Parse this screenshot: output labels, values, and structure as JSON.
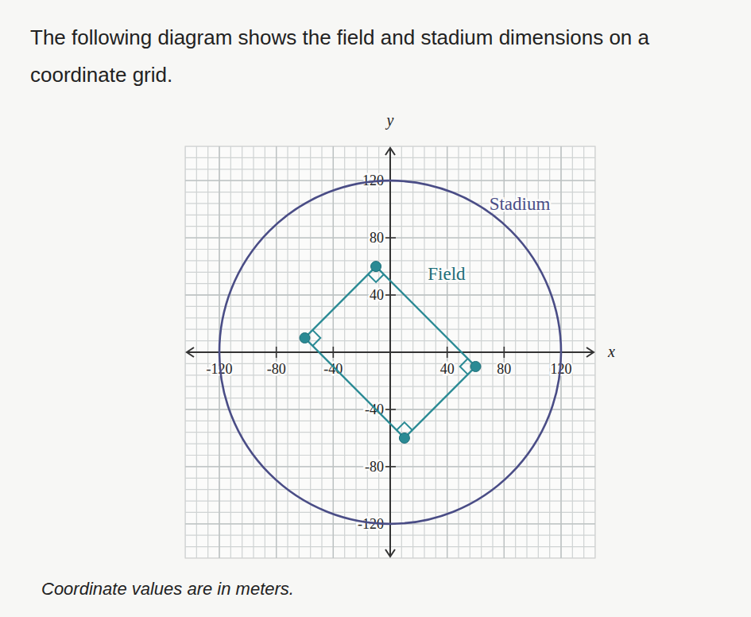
{
  "chart_data": {
    "type": "scatter",
    "title": "The following diagram shows the field and stadium dimensions on a coordinate grid.",
    "x": [
      -10,
      -60,
      10,
      60
    ],
    "values": [
      60,
      10,
      -60,
      -10
    ],
    "xlim": [
      -144,
      144
    ],
    "ylim": [
      -144,
      144
    ],
    "xticks": [
      -120,
      -80,
      -40,
      40,
      80,
      120
    ],
    "yticks": [
      120,
      80,
      40,
      -40,
      -80,
      -120
    ],
    "x_label": "x",
    "y_label": "y",
    "grid": true,
    "color": "#2a8a94",
    "stadium": {
      "label": "Stadium",
      "center": [
        0,
        0
      ],
      "radius": 120,
      "color": "#4a4d86"
    },
    "field": {
      "label": "Field"
    },
    "note": "Coordinate values are in meters."
  }
}
